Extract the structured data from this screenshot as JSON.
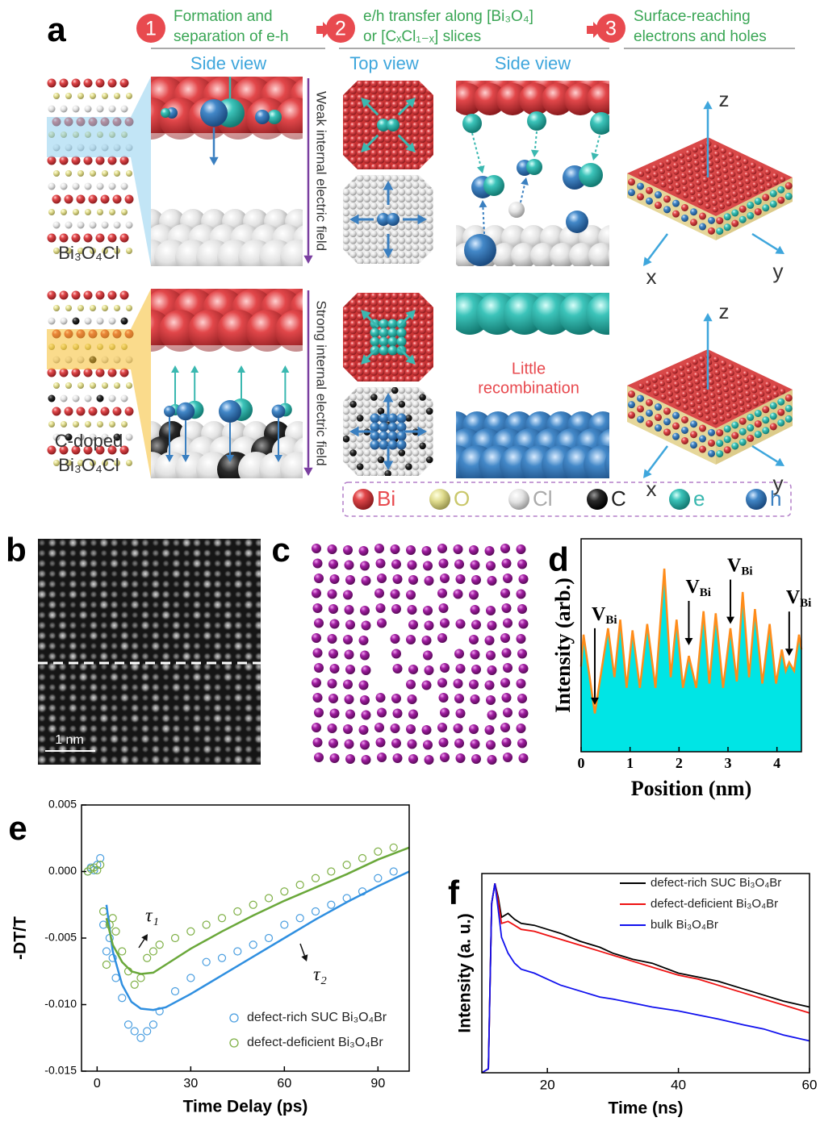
{
  "panel_labels": [
    "a",
    "b",
    "c",
    "d",
    "e",
    "f"
  ],
  "panel_a": {
    "steps": [
      {
        "number": "1",
        "text": [
          "Formation and",
          "separation of e-h"
        ]
      },
      {
        "number": "2",
        "text": [
          "e/h transfer along [Bi₃O₄]",
          "or [CₓCl₁₋ₓ] slices"
        ]
      },
      {
        "number": "3",
        "text": [
          "Surface-reaching",
          "electrons and holes"
        ]
      }
    ],
    "views": [
      "Side view",
      "Top view",
      "Side view"
    ],
    "materials": [
      [
        "Bi₃O₄Cl"
      ],
      [
        "C-doped",
        "Bi₃O₄Cl"
      ]
    ],
    "fields": [
      "Weak internal electric field",
      "Strong internal electric field"
    ],
    "annotation": [
      "Little",
      "recombination"
    ],
    "axes": [
      "z",
      "x",
      "y"
    ],
    "legend": [
      "Bi",
      "O",
      "Cl",
      "C",
      "e",
      "h"
    ]
  },
  "scale_bar": "1 nm",
  "chart_data": [
    {
      "type": "area",
      "x_label": "Position (nm)",
      "y_label": "Intensity (arb.)",
      "x": [
        0,
        0.05,
        0.28,
        0.55,
        0.68,
        0.8,
        0.93,
        1.05,
        1.2,
        1.35,
        1.52,
        1.7,
        1.83,
        1.95,
        2.08,
        2.2,
        2.35,
        2.5,
        2.62,
        2.75,
        2.9,
        3.05,
        3.18,
        3.3,
        3.43,
        3.55,
        3.7,
        3.85,
        3.98,
        4.1,
        4.18,
        4.25,
        4.35,
        4.45,
        4.5
      ],
      "values": [
        0.4,
        0.55,
        0.18,
        0.58,
        0.35,
        0.62,
        0.3,
        0.57,
        0.3,
        0.6,
        0.3,
        0.86,
        0.35,
        0.62,
        0.3,
        0.45,
        0.3,
        0.66,
        0.32,
        0.65,
        0.3,
        0.58,
        0.33,
        0.75,
        0.35,
        0.67,
        0.32,
        0.6,
        0.32,
        0.48,
        0.38,
        0.42,
        0.38,
        0.55,
        0.48
      ],
      "color": "#00e5e5",
      "line_color": "#ff8c1a",
      "xlim": [
        0,
        4.5
      ],
      "ylim": [
        0,
        1
      ],
      "xticks": [
        0,
        1,
        2,
        3,
        4
      ],
      "annotations": [
        {
          "text": "V",
          "subscript": "Bi"
        },
        {
          "text": "V",
          "subscript": "Bi"
        },
        {
          "text": "V",
          "subscript": "Bi"
        },
        {
          "text": "V",
          "subscript": "Bi"
        }
      ]
    },
    {
      "type": "scatter",
      "x_label": "Time Delay (ps)",
      "y_label": "-DT/T",
      "xlim": [
        -5,
        100
      ],
      "ylim": [
        -0.015,
        0.005
      ],
      "xticks": [
        0,
        30,
        60,
        90
      ],
      "yticks": [
        0.005,
        {
          "value": 0,
          "label": "0.000"
        },
        -0.005,
        {
          "value": -0.01,
          "label": "-0.010"
        },
        -0.015
      ],
      "annotations": [
        "τ₁",
        "τ₂"
      ],
      "series": [
        {
          "name": "defect-rich SUC Bi₃O₄Br",
          "color": "#4a9ee0",
          "mode": "markers",
          "x": [
            -3,
            -2,
            -1,
            0,
            1,
            2,
            3,
            4,
            5,
            6,
            8,
            10,
            12,
            14,
            16,
            18,
            20,
            25,
            30,
            35,
            40,
            45,
            50,
            55,
            60,
            65,
            70,
            75,
            80,
            85,
            90,
            95
          ],
          "values": [
            0.0,
            0.0003,
            0.0001,
            0.0005,
            0.001,
            -0.004,
            -0.006,
            -0.005,
            -0.0065,
            -0.008,
            -0.0095,
            -0.0115,
            -0.012,
            -0.0125,
            -0.012,
            -0.0115,
            -0.0105,
            -0.009,
            -0.008,
            -0.0068,
            -0.0065,
            -0.006,
            -0.0055,
            -0.005,
            -0.004,
            -0.0035,
            -0.003,
            -0.0025,
            -0.002,
            -0.0015,
            -0.0005,
            0.0
          ]
        },
        {
          "name": "defect-deficient Bi₃O₄Br",
          "color": "#7fb046",
          "mode": "markers",
          "x": [
            -3,
            -2,
            -1,
            0,
            1,
            2,
            3,
            4,
            5,
            6,
            8,
            10,
            12,
            14,
            16,
            18,
            20,
            25,
            30,
            35,
            40,
            45,
            50,
            55,
            60,
            65,
            70,
            75,
            80,
            85,
            90,
            95
          ],
          "values": [
            0.0,
            0.0002,
            0.0003,
            0.0001,
            0.0005,
            -0.003,
            -0.007,
            -0.004,
            -0.0035,
            -0.0045,
            -0.006,
            -0.0075,
            -0.0085,
            -0.008,
            -0.0065,
            -0.006,
            -0.0055,
            -0.005,
            -0.0045,
            -0.004,
            -0.0035,
            -0.003,
            -0.0025,
            -0.002,
            -0.0015,
            -0.001,
            -0.0005,
            0.0,
            0.0005,
            0.001,
            0.0015,
            0.0018
          ]
        },
        {
          "color": "#2f8fe0",
          "mode": "line",
          "x": [
            3,
            5,
            8,
            11,
            14,
            18,
            22,
            30,
            40,
            50,
            60,
            70,
            80,
            90,
            100
          ],
          "values": [
            -0.0025,
            -0.006,
            -0.0085,
            -0.0098,
            -0.0103,
            -0.0104,
            -0.0102,
            -0.0092,
            -0.0078,
            -0.0064,
            -0.005,
            -0.0036,
            -0.0023,
            -0.0011,
            0.0
          ]
        },
        {
          "color": "#6aa83a",
          "mode": "line",
          "x": [
            3,
            5,
            8,
            11,
            14,
            18,
            22,
            30,
            40,
            50,
            60,
            70,
            80,
            90,
            100
          ],
          "values": [
            -0.0035,
            -0.0055,
            -0.0068,
            -0.0075,
            -0.0077,
            -0.0076,
            -0.007,
            -0.0058,
            -0.0045,
            -0.0033,
            -0.0022,
            -0.0012,
            -0.0002,
            0.0009,
            0.0018
          ]
        }
      ]
    },
    {
      "type": "line",
      "x_label": "Time (ns)",
      "y_label": "Intensity (a. u.)",
      "xlim": [
        10,
        60
      ],
      "ylim": [
        0,
        1
      ],
      "xticks": [
        20,
        40,
        60
      ],
      "x": [
        10,
        11,
        11.5,
        12,
        12.5,
        13,
        14,
        15,
        16,
        18,
        20,
        22,
        25,
        28,
        30,
        33,
        36,
        40,
        43,
        46,
        50,
        53,
        56,
        60
      ],
      "series": [
        {
          "name": "defect-rich SUC Bi₃O₄Br",
          "color": "#000000",
          "values": [
            0.0,
            0.02,
            0.85,
            0.95,
            0.88,
            0.78,
            0.8,
            0.77,
            0.75,
            0.74,
            0.72,
            0.7,
            0.66,
            0.63,
            0.6,
            0.57,
            0.55,
            0.5,
            0.48,
            0.46,
            0.42,
            0.39,
            0.36,
            0.33
          ]
        },
        {
          "name": "defect-deficient Bi₃O₄Br",
          "color": "#ee1111",
          "values": [
            0.0,
            0.02,
            0.85,
            0.95,
            0.86,
            0.75,
            0.76,
            0.74,
            0.72,
            0.71,
            0.69,
            0.67,
            0.64,
            0.61,
            0.59,
            0.56,
            0.53,
            0.49,
            0.47,
            0.44,
            0.4,
            0.37,
            0.34,
            0.3
          ]
        },
        {
          "name": "bulk Bi₃O₄Br",
          "color": "#1111ee",
          "values": [
            0.0,
            0.02,
            0.85,
            0.95,
            0.82,
            0.68,
            0.6,
            0.55,
            0.52,
            0.5,
            0.47,
            0.44,
            0.41,
            0.38,
            0.37,
            0.35,
            0.33,
            0.31,
            0.29,
            0.27,
            0.24,
            0.22,
            0.19,
            0.16
          ]
        }
      ]
    }
  ]
}
